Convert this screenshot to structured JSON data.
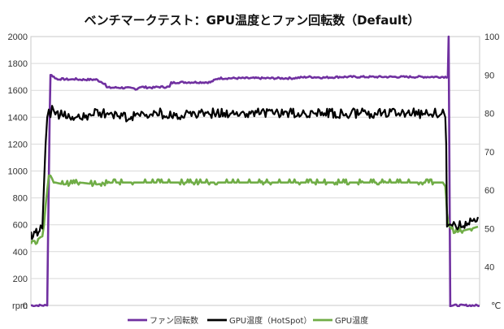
{
  "chart_data": {
    "type": "line",
    "title": "ベンチマークテスト：GPU温度とファン回転数（Default）",
    "x_range": [
      0,
      550
    ],
    "left_axis": {
      "unit": "rpm",
      "ylim": [
        0,
        2000
      ],
      "ticks": [
        "0",
        "200",
        "400",
        "600",
        "800",
        "1000",
        "1200",
        "1400",
        "1600",
        "1800",
        "2000"
      ]
    },
    "right_axis": {
      "unit": "℃",
      "ylim": [
        30,
        100
      ],
      "ticks": [
        "40",
        "50",
        "60",
        "70",
        "80",
        "90",
        "100"
      ]
    },
    "grid": true,
    "legend": "bottom",
    "series": [
      {
        "name": "ファン回転数",
        "axis": "left",
        "color": "#7030A0",
        "x": [
          0,
          20,
          21,
          23,
          24,
          28,
          33,
          35,
          50,
          52,
          60,
          70,
          80,
          91,
          93,
          110,
          125,
          130,
          133,
          150,
          155,
          170,
          172,
          180,
          200,
          220,
          230,
          250,
          270,
          280,
          300,
          320,
          340,
          360,
          380,
          400,
          420,
          440,
          460,
          480,
          500,
          505,
          511,
          512,
          513,
          514,
          550
        ],
        "y": [
          0,
          0,
          500,
          1400,
          1720,
          1700,
          1680,
          1685,
          1680,
          1685,
          1680,
          1680,
          1680,
          1650,
          1620,
          1620,
          1615,
          1610,
          1625,
          1620,
          1625,
          1625,
          1655,
          1660,
          1660,
          1660,
          1690,
          1690,
          1690,
          1690,
          1690,
          1690,
          1700,
          1695,
          1700,
          1700,
          1700,
          1700,
          1700,
          1700,
          1700,
          1700,
          1700,
          2000,
          1000,
          0,
          0
        ]
      },
      {
        "name": "GPU温度（HotSpot）",
        "axis": "right",
        "color": "#000000",
        "x": [
          0,
          4,
          8,
          12,
          14,
          18,
          20,
          22,
          24,
          26,
          28,
          30,
          40,
          60,
          80,
          100,
          120,
          140,
          160,
          180,
          200,
          220,
          240,
          260,
          280,
          300,
          320,
          340,
          360,
          380,
          400,
          420,
          440,
          460,
          480,
          500,
          505,
          508,
          509,
          510,
          512,
          515,
          520,
          530,
          540,
          548
        ],
        "y": [
          48,
          49,
          49,
          50,
          50,
          72,
          79,
          81,
          79,
          81,
          80,
          79,
          80,
          79,
          80,
          80,
          79,
          80,
          80,
          79,
          80,
          80,
          80,
          80,
          80,
          80,
          80,
          80,
          80,
          80,
          80,
          80,
          80,
          80,
          80,
          80,
          81,
          79,
          72,
          50,
          50,
          50,
          51,
          51,
          52,
          53
        ]
      },
      {
        "name": "GPU温度",
        "axis": "right",
        "color": "#70AD47",
        "x": [
          0,
          6,
          12,
          14,
          16,
          18,
          20,
          22,
          24,
          26,
          28,
          30,
          40,
          60,
          80,
          100,
          120,
          140,
          160,
          180,
          200,
          220,
          240,
          260,
          280,
          300,
          320,
          340,
          360,
          380,
          400,
          420,
          440,
          460,
          480,
          500,
          505,
          508,
          509,
          510,
          512,
          515,
          520,
          530,
          540,
          548
        ],
        "y": [
          46,
          46,
          47,
          48,
          51,
          56,
          60,
          63,
          63,
          63,
          62,
          62,
          61.5,
          62,
          61.5,
          62,
          62,
          62,
          62,
          62,
          62,
          62,
          62,
          62,
          62,
          62,
          62,
          62,
          62,
          62,
          62,
          62,
          62,
          62,
          62,
          62,
          62,
          61,
          58,
          54,
          51,
          50,
          49,
          49.5,
          50,
          50.5
        ]
      }
    ]
  }
}
